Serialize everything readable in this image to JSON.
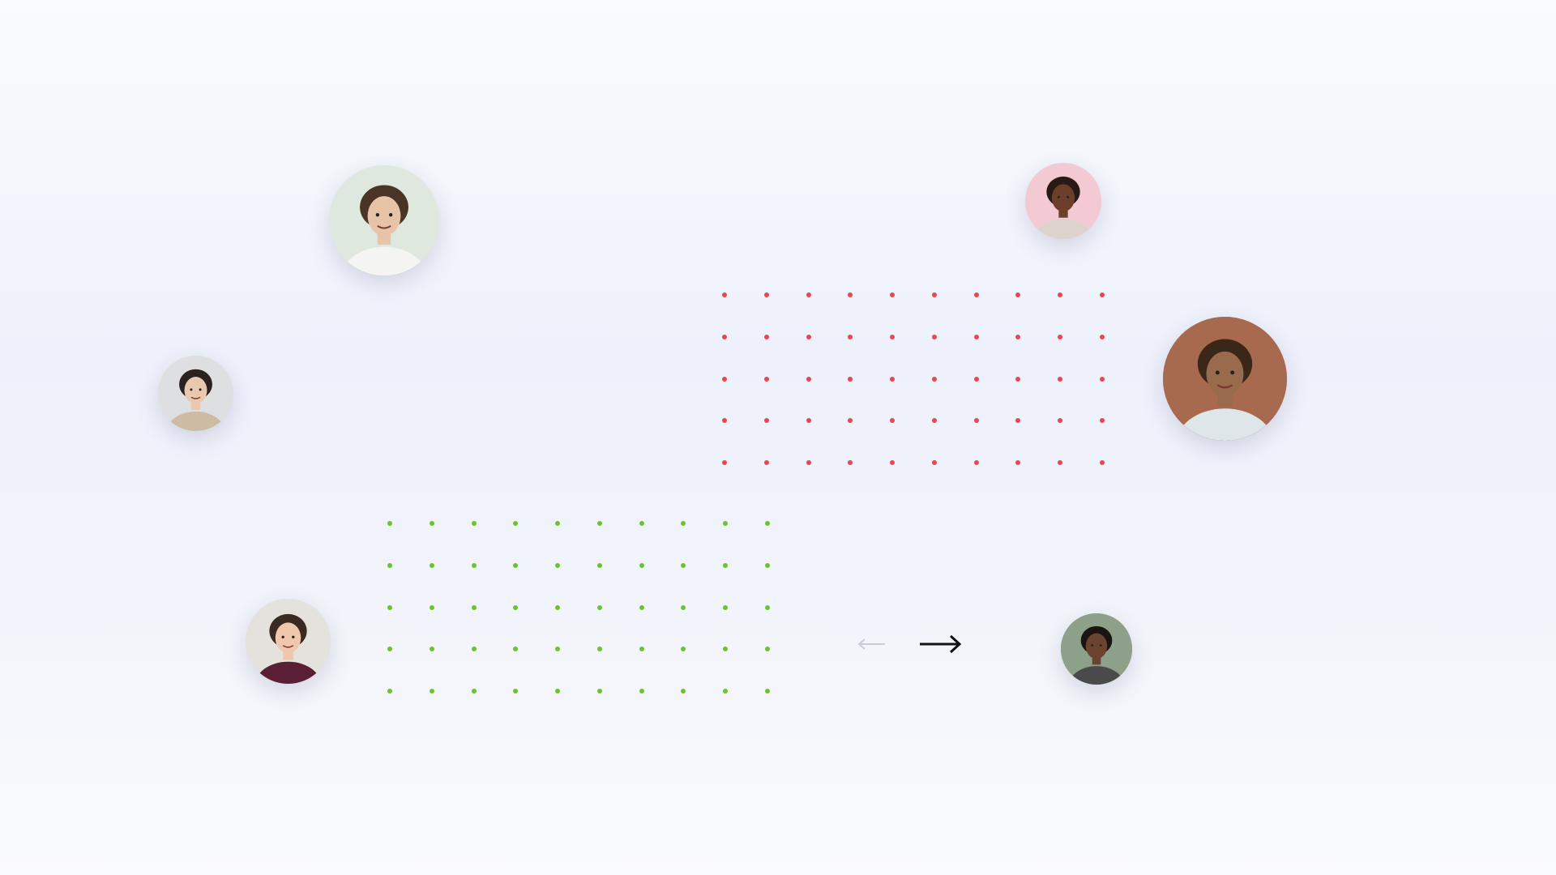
{
  "colors": {
    "background_top": "#fafbfd",
    "background_mid": "#eef1fb",
    "red_dots": "#e8474f",
    "green_dots": "#6cc42a",
    "arrow_active": "#111111",
    "arrow_inactive": "#c9ccd6"
  },
  "dot_grids": {
    "red": {
      "rows": 5,
      "cols": 10,
      "color": "#e8474f"
    },
    "green": {
      "rows": 5,
      "cols": 10,
      "color": "#6cc42a"
    }
  },
  "avatars": [
    {
      "name": "avatar-woman-lab-coat",
      "bg": "#dfe8de",
      "skin": "#e7c3a8",
      "hair": "#4a3426",
      "shirt": "#f4f4f2"
    },
    {
      "name": "avatar-woman-pink-background",
      "bg": "#f3c9d4",
      "skin": "#6b3f2a",
      "hair": "#2a1a16",
      "shirt": "#dcd4cc"
    },
    {
      "name": "avatar-woman-cardigan",
      "bg": "#dedfe0",
      "skin": "#e8c9b0",
      "hair": "#2b2220",
      "shirt": "#cdbba4"
    },
    {
      "name": "avatar-man-curly-hair-brick",
      "bg": "#a86a4e",
      "skin": "#9a6a4c",
      "hair": "#3a2719",
      "shirt": "#dfe6ea"
    },
    {
      "name": "avatar-man-blue-glasses",
      "bg": "#e4e2dd",
      "skin": "#f0c7ad",
      "hair": "#3a2a22",
      "shirt": "#5a1f34"
    },
    {
      "name": "avatar-man-striped-shirt",
      "bg": "#8da08a",
      "skin": "#6a4430",
      "hair": "#1c1412",
      "shirt": "#4a4a4a"
    }
  ],
  "navigation": {
    "prev_icon": "arrow-left-icon",
    "next_icon": "arrow-right-icon"
  }
}
